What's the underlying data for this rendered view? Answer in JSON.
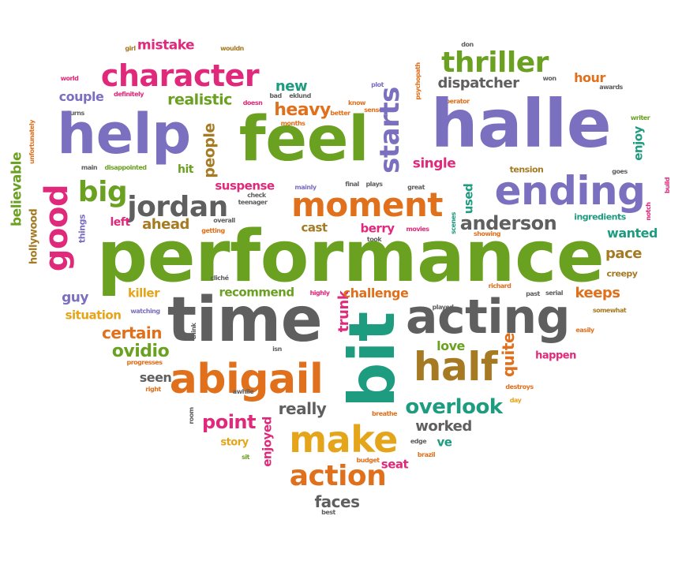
{
  "palette": {
    "green": "#6aa121",
    "purple": "#7b6fc0",
    "pink": "#e0297a",
    "orange": "#e0701c",
    "gray": "#5f5f5f",
    "teal": "#1e9c80",
    "brown": "#a57a22",
    "gold": "#e5a51b"
  },
  "words": [
    "girl",
    "mistake",
    "wouldn",
    "don",
    "world",
    "character",
    "thriller",
    "hour",
    "won",
    "awards",
    "plot",
    "psychopath",
    "dispatcher",
    "new",
    "couple",
    "definitely",
    "doesn",
    "bad",
    "eklund",
    "operator",
    "realistic",
    "know",
    "sense",
    "turns",
    "heavy",
    "better",
    "months",
    "writer",
    "unfortunately",
    "help",
    "feel",
    "starts",
    "halle",
    "enjoy",
    "people",
    "single",
    "believable",
    "main",
    "disappointed",
    "hit",
    "tension",
    "goes",
    "good",
    "big",
    "jordan",
    "suspense",
    "check",
    "mainly",
    "final",
    "plays",
    "great",
    "ending",
    "build",
    "notch",
    "teenager",
    "moment",
    "used",
    "overall",
    "hollywood",
    "things",
    "left",
    "ahead",
    "getting",
    "cast",
    "berry",
    "took",
    "movies",
    "scenes",
    "anderson",
    "ingredients",
    "wanted",
    "showing",
    "performance",
    "pace",
    "cliché",
    "creepy",
    "guy",
    "killer",
    "recommend",
    "highly",
    "trunk",
    "challenge",
    "richard",
    "past",
    "serial",
    "keeps",
    "time",
    "situation",
    "watching",
    "played",
    "somewhat",
    "certain",
    "think",
    "bit",
    "acting",
    "easily",
    "ovidio",
    "isn",
    "love",
    "quite",
    "progresses",
    "happen",
    "seen",
    "abigail",
    "half",
    "right",
    "destroys",
    "awhile",
    "room",
    "point",
    "really",
    "overlook",
    "day",
    "enjoyed",
    "breathe",
    "make",
    "worked",
    "story",
    "sit",
    "budget",
    "edge",
    "ve",
    "brazil",
    "seat",
    "action",
    "faces",
    "best"
  ]
}
